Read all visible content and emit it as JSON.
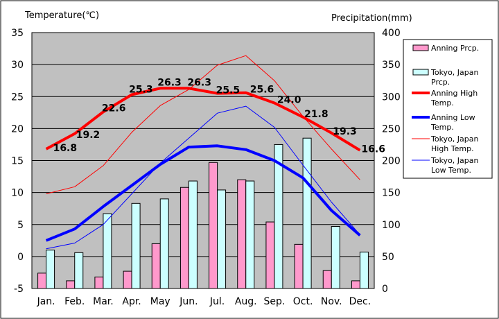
{
  "chart_data": {
    "type": "bar+line",
    "categories": [
      "Jan.",
      "Feb.",
      "Mar.",
      "Apr.",
      "May",
      "Jun.",
      "Jul.",
      "Aug.",
      "Sep.",
      "Oct.",
      "Nov.",
      "Dec."
    ],
    "left_axis": {
      "label": "Temperature(℃)",
      "ylim": [
        -5,
        35
      ],
      "ticks": [
        35,
        30,
        25,
        20,
        15,
        10,
        5,
        0,
        -5
      ]
    },
    "right_axis": {
      "label": "Precipitation(mm)",
      "ylim": [
        0,
        400
      ],
      "ticks": [
        400,
        350,
        300,
        250,
        200,
        150,
        100,
        50,
        0
      ]
    },
    "grid": true,
    "legend_position": "right",
    "series": [
      {
        "name": "Anning Prcp.",
        "kind": "bar",
        "axis": "right",
        "color": "#ff99cc",
        "values": [
          24,
          12,
          18,
          27,
          70,
          158,
          197,
          170,
          104,
          69,
          28,
          12
        ]
      },
      {
        "name": "Tokyo, Japan Prcp.",
        "kind": "bar",
        "axis": "right",
        "color": "#ccffff",
        "values": [
          60,
          56,
          117,
          133,
          140,
          168,
          154,
          168,
          225,
          235,
          97,
          57
        ]
      },
      {
        "name": "Anning High Temp.",
        "kind": "line",
        "axis": "left",
        "color": "#ff0000",
        "width": "thick",
        "values": [
          16.8,
          19.2,
          22.6,
          25.3,
          26.3,
          26.3,
          25.5,
          25.6,
          24.0,
          21.8,
          19.3,
          16.6
        ],
        "labels": [
          "16.8",
          "19.2",
          "22.6",
          "25.3",
          "26.3",
          "26.3",
          "25.5",
          "25.6",
          "24.0",
          "21.8",
          "19.3",
          "16.6"
        ]
      },
      {
        "name": "Anning Low Temp.",
        "kind": "line",
        "axis": "left",
        "color": "#0000ff",
        "width": "thick",
        "values": [
          2.5,
          4.3,
          7.8,
          11.1,
          14.4,
          17.1,
          17.3,
          16.7,
          15.0,
          12.3,
          7.2,
          3.3
        ]
      },
      {
        "name": "Tokyo, Japan High Temp.",
        "kind": "line",
        "axis": "left",
        "color": "#ff0000",
        "width": "thin",
        "values": [
          9.8,
          10.9,
          14.2,
          19.4,
          23.6,
          26.1,
          29.9,
          31.4,
          27.5,
          21.9,
          16.8,
          12.0
        ]
      },
      {
        "name": "Tokyo, Japan Low Temp.",
        "kind": "line",
        "axis": "left",
        "color": "#0000ff",
        "width": "thin",
        "values": [
          1.2,
          2.1,
          5.0,
          9.8,
          14.6,
          18.5,
          22.4,
          23.5,
          20.2,
          14.3,
          8.5,
          3.4
        ]
      }
    ]
  }
}
